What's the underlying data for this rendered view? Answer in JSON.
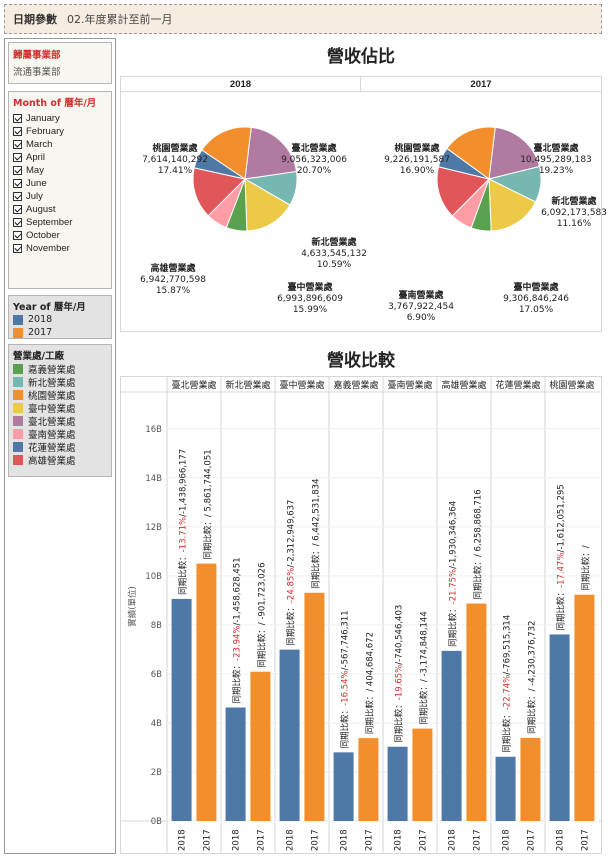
{
  "param": {
    "label": "日期參數",
    "value": "02.年度累計至前一月"
  },
  "filters": {
    "dept": {
      "title": "歸屬事業部",
      "value": "流通事業部"
    },
    "month": {
      "title": "Month of 曆年/月",
      "items": [
        "January",
        "February",
        "March",
        "April",
        "May",
        "June",
        "July",
        "August",
        "September",
        "October",
        "November"
      ]
    },
    "year_legend": {
      "title": "Year of 曆年/月",
      "items": [
        {
          "label": "2018",
          "color": "#4e79a7"
        },
        {
          "label": "2017",
          "color": "#f28e2b"
        }
      ]
    },
    "region_legend": {
      "title": "營業處/工廠",
      "items": [
        {
          "label": "嘉義營業處",
          "color": "#59a14f"
        },
        {
          "label": "新北營業處",
          "color": "#76b7b2"
        },
        {
          "label": "桃園營業處",
          "color": "#f28e2b"
        },
        {
          "label": "臺中營業處",
          "color": "#edc948"
        },
        {
          "label": "臺北營業處",
          "color": "#b07aa1"
        },
        {
          "label": "臺南營業處",
          "color": "#ff9da7"
        },
        {
          "label": "花蓮營業處",
          "color": "#4e79a7"
        },
        {
          "label": "高雄營業處",
          "color": "#e15759"
        }
      ]
    }
  },
  "pie_section": {
    "title": "營收佔比",
    "panels": [
      "2018",
      "2017"
    ]
  },
  "bar_section": {
    "title": "營收比較",
    "ylabel": "實績(單位)"
  },
  "chart_data": [
    {
      "type": "pie",
      "title": "2018",
      "slices": [
        {
          "name": "臺北營業處",
          "value": 9056323006,
          "value_label": "9,056,323,006",
          "pct": "20.70%",
          "color": "#b07aa1",
          "labeled": true
        },
        {
          "name": "新北營業處",
          "value": 4633545132,
          "value_label": "4,633,545,132",
          "pct": "10.59%",
          "color": "#76b7b2",
          "labeled": true
        },
        {
          "name": "臺中營業處",
          "value": 6993896609,
          "value_label": "6,993,896,609",
          "pct": "15.99%",
          "color": "#edc948",
          "labeled": true
        },
        {
          "name": "嘉義營業處",
          "value": 2800000000,
          "color": "#59a14f",
          "labeled": false
        },
        {
          "name": "臺南營業處",
          "value": 2900000000,
          "color": "#ff9da7",
          "labeled": false
        },
        {
          "name": "高雄營業處",
          "value": 6942770598,
          "value_label": "6,942,770,598",
          "pct": "15.87%",
          "color": "#e15759",
          "labeled": true
        },
        {
          "name": "花蓮營業處",
          "value": 2600000000,
          "color": "#4e79a7",
          "labeled": false
        },
        {
          "name": "桃園營業處",
          "value": 7614140292,
          "value_label": "7,614,140,292",
          "pct": "17.41%",
          "color": "#f28e2b",
          "labeled": true
        }
      ]
    },
    {
      "type": "pie",
      "title": "2017",
      "slices": [
        {
          "name": "臺北營業處",
          "value": 10495289183,
          "value_label": "10,495,289,183",
          "pct": "19.23%",
          "color": "#b07aa1",
          "labeled": true
        },
        {
          "name": "新北營業處",
          "value": 6092173583,
          "value_label": "6,092,173,583",
          "pct": "11.16%",
          "color": "#76b7b2",
          "labeled": true
        },
        {
          "name": "臺中營業處",
          "value": 9306846246,
          "value_label": "9,306,846,246",
          "pct": "17.05%",
          "color": "#edc948",
          "labeled": true
        },
        {
          "name": "嘉義營業處",
          "value": 3400000000,
          "color": "#59a14f",
          "labeled": false
        },
        {
          "name": "臺南營業處",
          "value": 3767922454,
          "value_label": "3,767,922,454",
          "pct": "6.90%",
          "color": "#ff9da7",
          "labeled": true
        },
        {
          "name": "高雄營業處",
          "value": 8900000000,
          "color": "#e15759",
          "labeled": false
        },
        {
          "name": "花蓮營業處",
          "value": 3400000000,
          "color": "#4e79a7",
          "labeled": false
        },
        {
          "name": "桃園營業處",
          "value": 9226191587,
          "value_label": "9,226,191,587",
          "pct": "16.90%",
          "color": "#f28e2b",
          "labeled": true
        }
      ]
    },
    {
      "type": "bar",
      "ylabel": "實績(單位)",
      "ylim": [
        0,
        17.5
      ],
      "yticks": [
        "0B",
        "2B",
        "4B",
        "6B",
        "8B",
        "10B",
        "12B",
        "14B",
        "16B"
      ],
      "grid": true,
      "series_colors": {
        "2018": "#4e79a7",
        "2017": "#f28e2b"
      },
      "label_prefix": "同期比較：",
      "facets": [
        {
          "name": "臺北營業處",
          "bars": [
            {
              "year": "2018",
              "value": 9.06,
              "pct": "-13.71%",
              "rest": "/-1,438,966,177"
            },
            {
              "year": "2017",
              "value": 10.5,
              "rest": "/ 5,861,744,051"
            }
          ]
        },
        {
          "name": "新北營業處",
          "bars": [
            {
              "year": "2018",
              "value": 4.63,
              "pct": "-23.94%",
              "rest": "/-1,458,628,451"
            },
            {
              "year": "2017",
              "value": 6.09,
              "rest": "/ -901,723,026"
            }
          ]
        },
        {
          "name": "臺中營業處",
          "bars": [
            {
              "year": "2018",
              "value": 6.99,
              "pct": "-24.85%",
              "rest": "/-2,312,949,637"
            },
            {
              "year": "2017",
              "value": 9.31,
              "rest": "/ 6,442,531,834"
            }
          ]
        },
        {
          "name": "嘉義營業處",
          "bars": [
            {
              "year": "2018",
              "value": 2.8,
              "pct": "-16.54%",
              "rest": "/-567,746,311"
            },
            {
              "year": "2017",
              "value": 3.38,
              "rest": "/ 404,684,672"
            }
          ]
        },
        {
          "name": "臺南營業處",
          "bars": [
            {
              "year": "2018",
              "value": 3.03,
              "pct": "-19.65%",
              "rest": "/-740,546,403"
            },
            {
              "year": "2017",
              "value": 3.77,
              "rest": "/ -3,174,848,144"
            }
          ]
        },
        {
          "name": "高雄營業處",
          "bars": [
            {
              "year": "2018",
              "value": 6.94,
              "pct": "-21.75%",
              "rest": "/-1,930,346,364"
            },
            {
              "year": "2017",
              "value": 8.87,
              "rest": "/ 6,258,868,716"
            }
          ]
        },
        {
          "name": "花蓮營業處",
          "bars": [
            {
              "year": "2018",
              "value": 2.62,
              "pct": "-22.74%",
              "rest": "/-769,515,314"
            },
            {
              "year": "2017",
              "value": 3.39,
              "rest": "/ -4,230,376,732"
            }
          ]
        },
        {
          "name": "桃園營業處",
          "bars": [
            {
              "year": "2018",
              "value": 7.61,
              "pct": "-17.47%",
              "rest": "/-1,612,051,295"
            },
            {
              "year": "2017",
              "value": 9.23,
              "rest": "/"
            }
          ]
        }
      ]
    }
  ]
}
